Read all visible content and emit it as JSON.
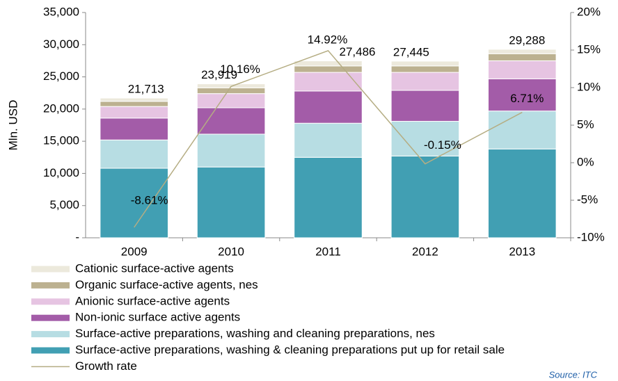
{
  "chart_data": {
    "type": "stacked-bar-line",
    "y_label": "Mln. USD",
    "categories": [
      "2009",
      "2010",
      "2011",
      "2012",
      "2013"
    ],
    "series": [
      {
        "name": "Surface-active preparations, washing & cleaning preparations put up for retail sale",
        "color": "#419fb3",
        "values": [
          10800,
          11000,
          12500,
          12700,
          13800
        ]
      },
      {
        "name": "Surface-active preparations, washing and cleaning preparations, nes",
        "color": "#b7dde3",
        "values": [
          4400,
          5100,
          5300,
          5400,
          5900
        ]
      },
      {
        "name": "Non-ionic surface active agents",
        "color": "#a35ca8",
        "values": [
          3400,
          4100,
          5000,
          4800,
          5000
        ]
      },
      {
        "name": "Anionic surface-active agents",
        "color": "#e6c4e2",
        "values": [
          1800,
          2200,
          2900,
          2800,
          2800
        ]
      },
      {
        "name": "Organic surface-active agents, nes",
        "color": "#bcb190",
        "values": [
          800,
          900,
          1000,
          1000,
          1100
        ]
      },
      {
        "name": "Cationic surface-active agents",
        "color": "#ece9dc",
        "values": [
          513,
          619,
          786,
          745,
          688
        ]
      },
      {
        "name": "Growth rate",
        "color": "#b5ad83",
        "axis": "y2",
        "values": [
          -8.61,
          10.16,
          14.92,
          -0.15,
          6.71
        ],
        "value_labels": [
          "-8.61%",
          "10.16%",
          "14.92%",
          "-0.15%",
          "6.71%"
        ]
      }
    ],
    "total_labels": [
      "21,713",
      "23,919",
      "27,486",
      "27,445",
      "29,288"
    ],
    "ylim": [
      0,
      35000
    ],
    "yticks": [
      {
        "value": 0,
        "label": "-"
      },
      {
        "value": 5000,
        "label": "5,000"
      },
      {
        "value": 10000,
        "label": "10,000"
      },
      {
        "value": 15000,
        "label": "15,000"
      },
      {
        "value": 20000,
        "label": "20,000"
      },
      {
        "value": 25000,
        "label": "25,000"
      },
      {
        "value": 30000,
        "label": "30,000"
      },
      {
        "value": 35000,
        "label": "35,000"
      }
    ],
    "y2lim": [
      -10,
      20
    ],
    "y2ticks": [
      {
        "value": -10,
        "label": "-10%"
      },
      {
        "value": -5,
        "label": "-5%"
      },
      {
        "value": 0,
        "label": "0%"
      },
      {
        "value": 5,
        "label": "5%"
      },
      {
        "value": 10,
        "label": "10%"
      },
      {
        "value": 15,
        "label": "15%"
      },
      {
        "value": 20,
        "label": "20%"
      }
    ],
    "source": "Source: ITC"
  }
}
